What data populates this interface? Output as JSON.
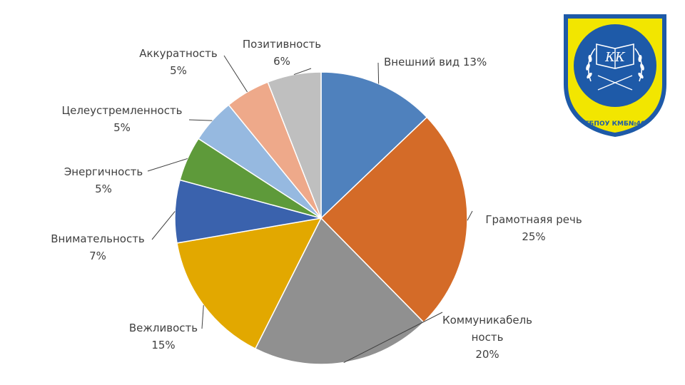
{
  "chart_data": {
    "type": "pie",
    "title": "",
    "slices": [
      {
        "label": "Внешний вид",
        "value": 13,
        "display": "Внешний вид 13%",
        "color": "#4f81bd"
      },
      {
        "label": "Грамотнаяя речь",
        "value": 25,
        "display": "Грамотнаяя речь\n25%",
        "color": "#d46b28"
      },
      {
        "label": "Коммуникабельность",
        "value": 20,
        "display": "Коммуникабель\nность\n20%",
        "color": "#909090"
      },
      {
        "label": "Вежливость",
        "value": 15,
        "display": "Вежливость\n15%",
        "color": "#e2a800"
      },
      {
        "label": "Внимательность",
        "value": 7,
        "display": "Внимательность\n7%",
        "color": "#3a62ad"
      },
      {
        "label": "Энергичность",
        "value": 5,
        "display": "Энергичность\n5%",
        "color": "#5e9a3a"
      },
      {
        "label": "Целеустремленность",
        "value": 5,
        "display": "Целеустремленность\n5%",
        "color": "#96b9e0"
      },
      {
        "label": "Аккуратность",
        "value": 5,
        "display": "Аккуратность\n5%",
        "color": "#eea98a"
      },
      {
        "label": "Позитивность",
        "value": 6,
        "display": "Позитивность\n6%",
        "color": "#bfbfbf"
      }
    ],
    "legend": "none"
  },
  "logo": {
    "description_icon": "shield-book-laurel-logo-icon",
    "letters": "КК",
    "ring_text": "ГБПОУ КМБ№46",
    "colors": {
      "shield": "#f2e600",
      "inner": "#1e5aa8",
      "border": "#1e5aa8"
    }
  }
}
